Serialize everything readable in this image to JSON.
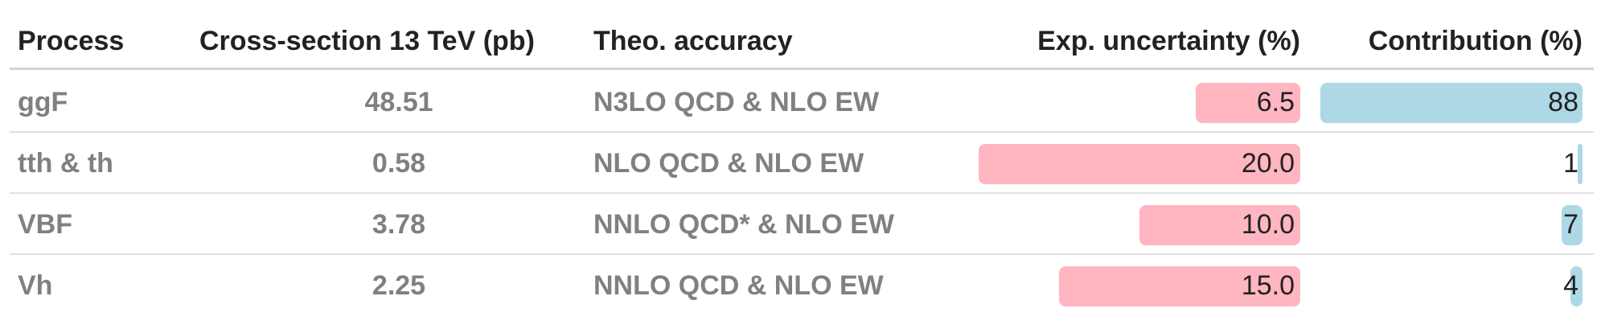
{
  "chart_data": {
    "type": "table",
    "columns": [
      "Process",
      "Cross-section 13 TeV (pb)",
      "Theo. accuracy",
      "Exp. uncertainty (%)",
      "Contribution (%)"
    ],
    "rows": [
      {
        "process": "ggF",
        "cross_section": "48.51",
        "accuracy": "N3LO QCD & NLO EW",
        "uncertainty": 6.5,
        "uncertainty_label": "6.5",
        "contribution": 88,
        "contribution_label": "88"
      },
      {
        "process": "tth & th",
        "cross_section": "0.58",
        "accuracy": "NLO QCD & NLO EW",
        "uncertainty": 20.0,
        "uncertainty_label": "20.0",
        "contribution": 1,
        "contribution_label": "1"
      },
      {
        "process": "VBF",
        "cross_section": "3.78",
        "accuracy": "NNLO QCD* & NLO EW",
        "uncertainty": 10.0,
        "uncertainty_label": "10.0",
        "contribution": 7,
        "contribution_label": "7"
      },
      {
        "process": "Vh",
        "cross_section": "2.25",
        "accuracy": "NNLO QCD & NLO EW",
        "uncertainty": 15.0,
        "uncertainty_label": "15.0",
        "contribution": 4,
        "contribution_label": "4"
      }
    ],
    "uncertainty_range": [
      0,
      20
    ],
    "contribution_range": [
      0,
      88
    ],
    "colors": {
      "uncertainty_bar": "#ffb6c1",
      "contribution_bar": "#add8e6"
    }
  }
}
